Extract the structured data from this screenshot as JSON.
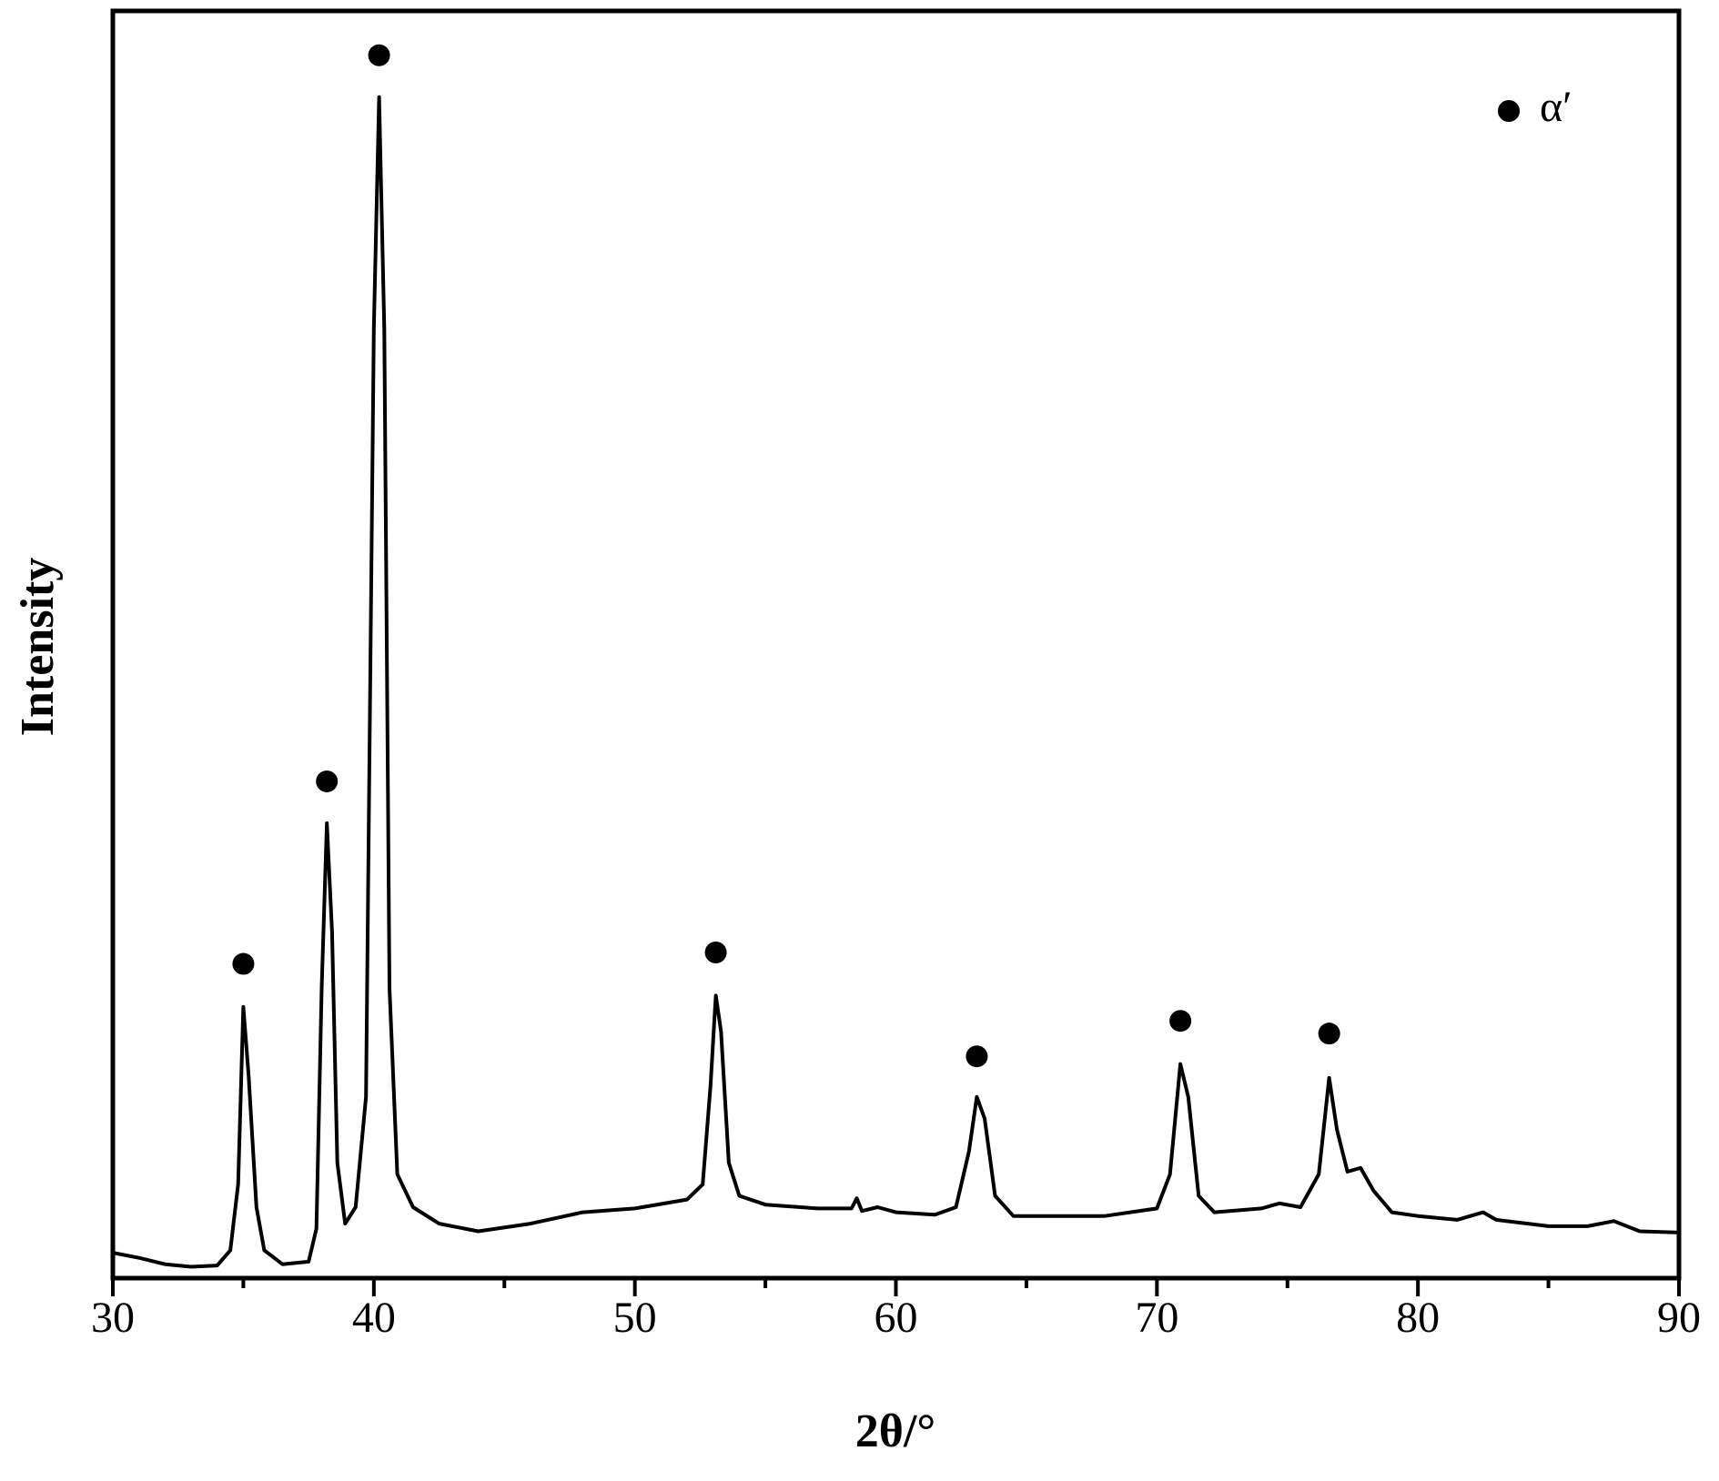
{
  "chart_data": {
    "type": "line",
    "xlabel": "2θ/°",
    "ylabel": "Intensity",
    "xlim": [
      30,
      90
    ],
    "ylim": [
      0,
      100
    ],
    "xticks": [
      30,
      40,
      50,
      60,
      70,
      80,
      90
    ],
    "xminorticks": [
      35,
      45,
      55,
      65,
      75,
      85
    ],
    "color": "#000000",
    "x": [
      30,
      31,
      32,
      33,
      34,
      34.5,
      34.8,
      35.0,
      35.2,
      35.5,
      35.8,
      36.5,
      37.5,
      37.8,
      38.0,
      38.2,
      38.4,
      38.6,
      38.9,
      39.3,
      39.7,
      40.0,
      40.2,
      40.4,
      40.6,
      40.9,
      41.5,
      42.5,
      44,
      46,
      48,
      50,
      52,
      52.6,
      52.9,
      53.1,
      53.3,
      53.6,
      54,
      55,
      57,
      58.3,
      58.5,
      58.7,
      59.3,
      60,
      61.5,
      62.3,
      62.8,
      63.1,
      63.4,
      63.8,
      64.5,
      66,
      68,
      70,
      70.5,
      70.9,
      71.2,
      71.6,
      72.2,
      74,
      74.7,
      75.5,
      76.2,
      76.6,
      76.9,
      77.3,
      77.8,
      78.3,
      79,
      80,
      81.5,
      82.5,
      83,
      85,
      86.5,
      87.5,
      88.5,
      90
    ],
    "values": [
      2.0,
      1.6,
      1.1,
      0.9,
      1.0,
      2.2,
      7.4,
      21.4,
      16.0,
      5.6,
      2.2,
      1.1,
      1.3,
      3.9,
      22.9,
      35.9,
      27.3,
      9.1,
      4.3,
      5.6,
      14.3,
      74.9,
      93.2,
      74.9,
      22.9,
      8.2,
      5.6,
      4.3,
      3.7,
      4.3,
      5.2,
      5.5,
      6.2,
      7.4,
      15.2,
      22.3,
      19.5,
      9.1,
      6.5,
      5.8,
      5.5,
      5.5,
      6.3,
      5.3,
      5.6,
      5.2,
      5.0,
      5.6,
      10.0,
      14.3,
      12.6,
      6.5,
      4.9,
      4.9,
      4.9,
      5.5,
      8.2,
      16.9,
      14.3,
      6.5,
      5.2,
      5.5,
      5.9,
      5.6,
      8.2,
      15.8,
      11.7,
      8.4,
      8.7,
      6.9,
      5.2,
      4.9,
      4.6,
      5.2,
      4.6,
      4.1,
      4.1,
      4.5,
      3.7,
      3.6
    ],
    "peaks": {
      "name": "α′",
      "color": "#000000",
      "x": [
        35.0,
        38.2,
        40.2,
        53.1,
        63.1,
        70.9,
        76.6
      ],
      "values": [
        24.8,
        39.2,
        96.5,
        25.7,
        17.5,
        20.3,
        19.3
      ]
    },
    "legend": "upper right"
  }
}
